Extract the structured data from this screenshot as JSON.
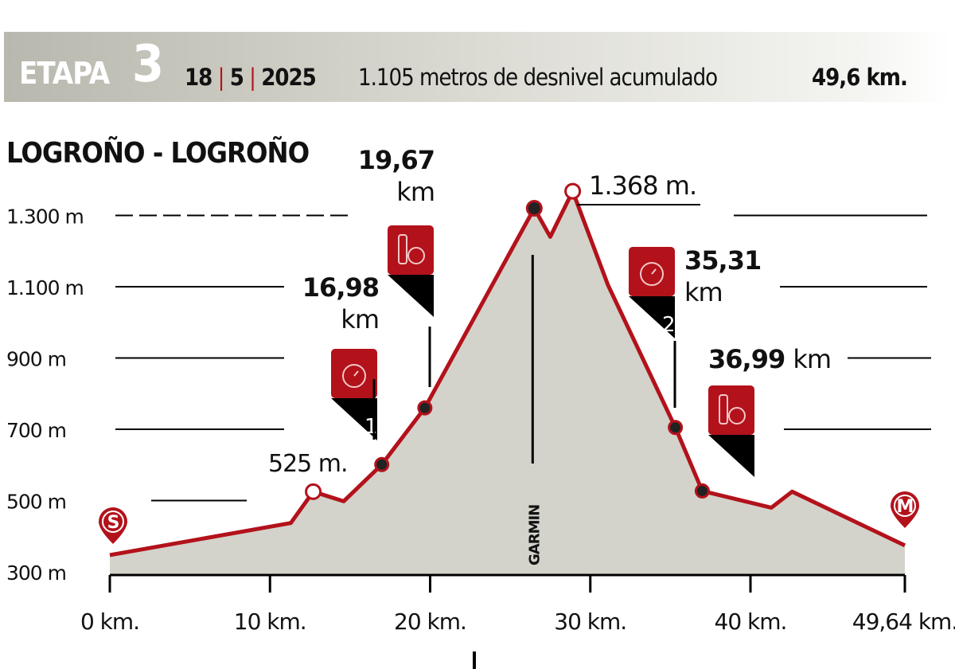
{
  "header": {
    "stage_word": "ETAPA",
    "stage_number": "3",
    "day": "18",
    "month": "5",
    "year": "2025",
    "elevation_gain": "1.105 metros de desnivel acumulado",
    "distance": "49,6 km."
  },
  "route": "LOGROÑO - LOGROÑO",
  "colors": {
    "profile_line": "#b3121b",
    "profile_fill": "#d3d3cb",
    "marker_red": "#b3121b",
    "marker_black": "#000000"
  },
  "chart_data": {
    "type": "area",
    "title": "",
    "xlabel": "",
    "ylabel": "",
    "xlim": [
      0,
      49.64
    ],
    "ylim": [
      300,
      1368
    ],
    "y_ticks": [
      "300 m",
      "500 m",
      "700 m",
      "900 m",
      "1.100 m",
      "1.300 m"
    ],
    "y_tick_values": [
      300,
      500,
      700,
      900,
      1100,
      1300
    ],
    "x_ticks": [
      "0 km.",
      "10 km.",
      "20 km.",
      "30 km.",
      "40 km.",
      "49,64 km."
    ],
    "x_tick_values": [
      0,
      10,
      20,
      30,
      40,
      49.64
    ],
    "profile": [
      {
        "km": 0,
        "m": 347
      },
      {
        "km": 11.3,
        "m": 437
      },
      {
        "km": 12.7,
        "m": 525
      },
      {
        "km": 14.6,
        "m": 498
      },
      {
        "km": 16.98,
        "m": 601
      },
      {
        "km": 19.67,
        "m": 760
      },
      {
        "km": 26.5,
        "m": 1320
      },
      {
        "km": 27.5,
        "m": 1240
      },
      {
        "km": 28.9,
        "m": 1368
      },
      {
        "km": 31.1,
        "m": 1105
      },
      {
        "km": 35.31,
        "m": 705
      },
      {
        "km": 36.99,
        "m": 527
      },
      {
        "km": 41.3,
        "m": 480
      },
      {
        "km": 42.6,
        "m": 525
      },
      {
        "km": 49.64,
        "m": 374
      }
    ],
    "annotations": [
      {
        "km": 12.7,
        "m": 525,
        "label": "525 m.",
        "style": "open-circle"
      },
      {
        "km": 28.9,
        "m": 1368,
        "label": "1.368 m.",
        "style": "open-circle"
      },
      {
        "km": 26.5,
        "m": 1320,
        "label": "",
        "style": "dot"
      }
    ],
    "points_of_interest": [
      {
        "km": 16.98,
        "label_num": "16,98",
        "label_unit": "km",
        "icon": "timer-icon",
        "number": "1"
      },
      {
        "km": 19.67,
        "label_num": "19,67",
        "label_unit": "km",
        "icon": "food-drink-icon",
        "number": ""
      },
      {
        "km": 35.31,
        "label_num": "35,31",
        "label_unit": "km",
        "icon": "timer-icon",
        "number": "2"
      },
      {
        "km": 36.99,
        "label_num": "36,99",
        "label_unit": "km",
        "icon": "food-drink-icon",
        "number": ""
      }
    ],
    "start_marker": "S",
    "finish_marker": "M",
    "sponsor_text": "GARMIN",
    "grid": true
  }
}
